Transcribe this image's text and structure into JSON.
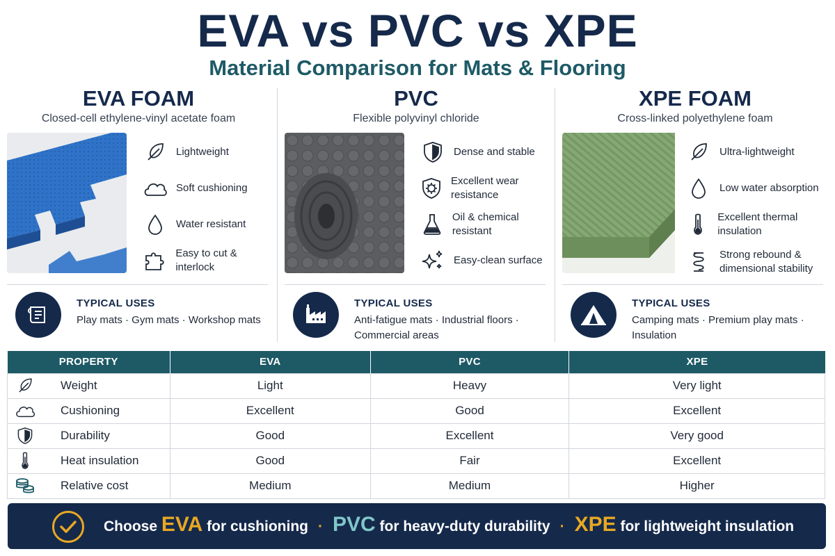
{
  "header": {
    "title": "EVA vs PVC vs XPE",
    "subtitle": "Material Comparison for Mats & Flooring"
  },
  "materials": [
    {
      "name": "EVA FOAM",
      "description": "Closed-cell ethylene-vinyl acetate foam",
      "features": [
        "Lightweight",
        "Soft cushioning",
        "Water resistant",
        "Easy to cut & interlock"
      ],
      "feature_icons": [
        "feather-icon",
        "cloud-icon",
        "water-drop-icon",
        "puzzle-icon"
      ],
      "uses_heading": "TYPICAL USES",
      "uses": "Play mats · Gym mats · Workshop mats",
      "uses_icon": "mat-roll-icon",
      "photo_color": "#2f73c9"
    },
    {
      "name": "PVC",
      "description": "Flexible polyvinyl chloride",
      "features": [
        "Dense and stable",
        "Excellent wear resistance",
        "Oil & chemical resistant",
        "Easy-clean surface"
      ],
      "feature_icons": [
        "shield-icon",
        "gear-shield-icon",
        "flask-icon",
        "sparkle-icon"
      ],
      "uses_heading": "TYPICAL USES",
      "uses": "Anti-fatigue mats · Industrial floors · Commercial areas",
      "uses_icon": "factory-icon",
      "photo_color": "#5b5d60"
    },
    {
      "name": "XPE FOAM",
      "description": "Cross-linked polyethylene foam",
      "features": [
        "Ultra-lightweight",
        "Low water absorption",
        "Excellent thermal insulation",
        "Strong rebound & dimensional stability"
      ],
      "feature_icons": [
        "feather-icon",
        "water-drop-icon",
        "thermometer-icon",
        "spring-icon"
      ],
      "uses_heading": "TYPICAL USES",
      "uses": "Camping mats · Premium play mats · Insulation",
      "uses_icon": "tent-icon",
      "photo_color": "#7fa06b"
    }
  ],
  "table": {
    "headers": [
      "PROPERTY",
      "EVA",
      "PVC",
      "XPE"
    ],
    "rows": [
      {
        "icon": "feather-icon",
        "property": "Weight",
        "eva": "Light",
        "pvc": "Heavy",
        "xpe": "Very light"
      },
      {
        "icon": "cloud-icon",
        "property": "Cushioning",
        "eva": "Excellent",
        "pvc": "Good",
        "xpe": "Excellent"
      },
      {
        "icon": "shield-icon",
        "property": "Durability",
        "eva": "Good",
        "pvc": "Excellent",
        "xpe": "Very good"
      },
      {
        "icon": "thermometer-icon",
        "property": "Heat insulation",
        "eva": "Good",
        "pvc": "Fair",
        "xpe": "Excellent"
      },
      {
        "icon": "coins-icon",
        "property": "Relative cost",
        "eva": "Medium",
        "pvc": "Medium",
        "xpe": "Higher"
      }
    ]
  },
  "banner": {
    "icon": "check-circle-icon",
    "choose": "Choose",
    "eva": "EVA",
    "eva_text": "for cushioning",
    "separator": "·",
    "pvc": "PVC",
    "pvc_text": "for heavy-duty durability",
    "xpe": "XPE",
    "xpe_text": "for lightweight insulation"
  },
  "colors": {
    "navy": "#15294b",
    "teal": "#1e5a66",
    "gold": "#e8a823",
    "light_teal": "#7fc7c9"
  }
}
